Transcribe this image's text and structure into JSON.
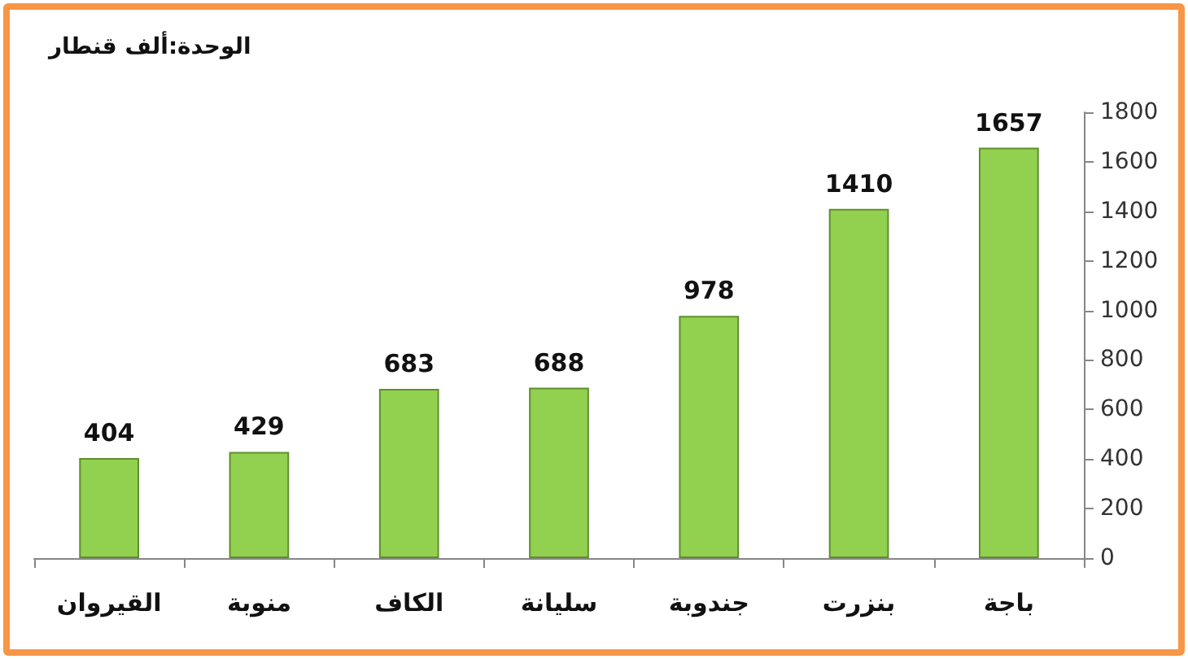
{
  "chart_data": {
    "type": "bar",
    "annotations": [
      "الوحدة:ألف قنطار"
    ],
    "categories": [
      "القيروان",
      "منوبة",
      "الكاف",
      "سليانة",
      "جندوبة",
      "بنزرت",
      "باجة"
    ],
    "values": [
      404,
      429,
      683,
      688,
      978,
      1410,
      1657
    ],
    "color": "#92d050",
    "ylim": [
      0,
      1800
    ],
    "yticks": [
      0,
      200,
      400,
      600,
      800,
      1000,
      1200,
      1400,
      1600,
      1800
    ],
    "data_labels": true,
    "grid": false
  }
}
